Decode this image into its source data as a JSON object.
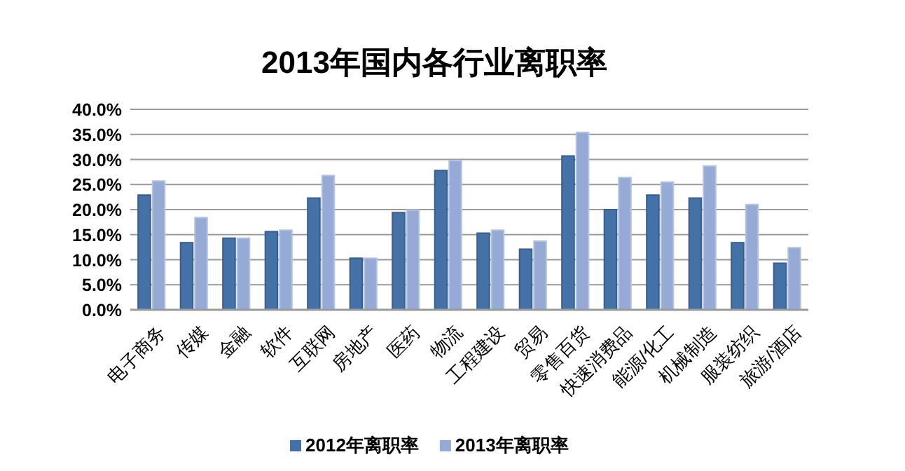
{
  "chart_data": {
    "type": "bar",
    "title": "2013年国内各行业离职率",
    "categories": [
      "电子商务",
      "传媒",
      "金融",
      "软件",
      "互联网",
      "房地产",
      "医药",
      "物流",
      "工程建设",
      "贸易",
      "零售百货",
      "快速消费品",
      "能源/化工",
      "机械制造",
      "服装纺织",
      "旅游/酒店"
    ],
    "series": [
      {
        "name": "2012年离职率",
        "color": "#4472a8",
        "values": [
          22.9,
          13.4,
          14.3,
          15.6,
          22.3,
          10.3,
          19.4,
          27.8,
          15.3,
          12.1,
          30.7,
          20.0,
          22.9,
          22.3,
          13.4,
          9.3
        ]
      },
      {
        "name": "2013年离职率",
        "color": "#95aad4",
        "values": [
          25.7,
          18.4,
          14.3,
          15.9,
          26.8,
          10.3,
          19.9,
          29.8,
          15.9,
          13.7,
          35.4,
          26.4,
          25.5,
          28.7,
          21.0,
          12.4
        ]
      }
    ],
    "ylim": [
      0,
      40
    ],
    "yticks": [
      {
        "value": 0,
        "label": "0.0%"
      },
      {
        "value": 5,
        "label": "5.0%"
      },
      {
        "value": 10,
        "label": "10.0%"
      },
      {
        "value": 15,
        "label": "15.0%"
      },
      {
        "value": 20,
        "label": "20.0%"
      },
      {
        "value": 25,
        "label": "25.0%"
      },
      {
        "value": 30,
        "label": "30.0%"
      },
      {
        "value": 35,
        "label": "35.0%"
      },
      {
        "value": 40,
        "label": "40.0%"
      }
    ],
    "grid": "y",
    "legend": "bottom"
  }
}
